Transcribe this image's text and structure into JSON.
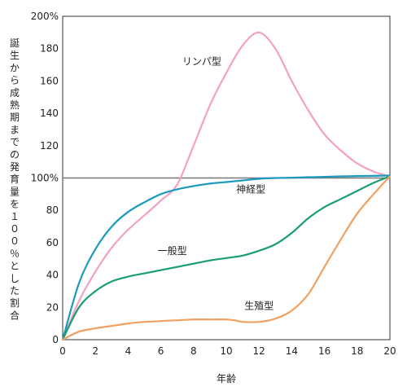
{
  "chart_data": {
    "type": "line",
    "xlabel": "年齢",
    "ylabel": "誕生から成熟期までの発育量を１００％とした割合",
    "xlim": [
      0,
      20
    ],
    "ylim": [
      0,
      200
    ],
    "x_ticks": [
      "0",
      "2",
      "4",
      "6",
      "8",
      "10",
      "12",
      "14",
      "16",
      "18",
      "20"
    ],
    "y_ticks": [
      "0",
      "20",
      "40",
      "60",
      "80",
      "100%",
      "120",
      "140",
      "160",
      "180",
      "200%"
    ],
    "reference_line": 100,
    "series": [
      {
        "name": "リンパ型",
        "color": "#f4a0c4",
        "points": [
          [
            0,
            0
          ],
          [
            1,
            24
          ],
          [
            2,
            42
          ],
          [
            3,
            57
          ],
          [
            4,
            68
          ],
          [
            5,
            77
          ],
          [
            6,
            86
          ],
          [
            7,
            96
          ],
          [
            8,
            120
          ],
          [
            9,
            145
          ],
          [
            10,
            165
          ],
          [
            11,
            182
          ],
          [
            12,
            190
          ],
          [
            13,
            180
          ],
          [
            14,
            160
          ],
          [
            15,
            142
          ],
          [
            16,
            127
          ],
          [
            17,
            117
          ],
          [
            18,
            109
          ],
          [
            19,
            104
          ],
          [
            20,
            101
          ]
        ]
      },
      {
        "name": "神経型",
        "color": "#1a9bbe",
        "points": [
          [
            0,
            0
          ],
          [
            1,
            35
          ],
          [
            2,
            56
          ],
          [
            3,
            70
          ],
          [
            4,
            79
          ],
          [
            5,
            85
          ],
          [
            6,
            90
          ],
          [
            7,
            93
          ],
          [
            8,
            95
          ],
          [
            9,
            96.5
          ],
          [
            10,
            97.5
          ],
          [
            11,
            98.5
          ],
          [
            12,
            99.5
          ],
          [
            13,
            100
          ],
          [
            14,
            100.2
          ],
          [
            15,
            100.5
          ],
          [
            16,
            100.7
          ],
          [
            17,
            101
          ],
          [
            18,
            101.2
          ],
          [
            19,
            101.3
          ],
          [
            20,
            101.5
          ]
        ]
      },
      {
        "name": "一般型",
        "color": "#1a9e6e",
        "points": [
          [
            0,
            0
          ],
          [
            1,
            20
          ],
          [
            2,
            30
          ],
          [
            3,
            36
          ],
          [
            4,
            39
          ],
          [
            5,
            41
          ],
          [
            6,
            43
          ],
          [
            7,
            45
          ],
          [
            8,
            47
          ],
          [
            9,
            49
          ],
          [
            10,
            50.5
          ],
          [
            11,
            52
          ],
          [
            12,
            55
          ],
          [
            13,
            59
          ],
          [
            14,
            66
          ],
          [
            15,
            75
          ],
          [
            16,
            82
          ],
          [
            17,
            87
          ],
          [
            18,
            92
          ],
          [
            19,
            97
          ],
          [
            20,
            101
          ]
        ]
      },
      {
        "name": "生殖型",
        "color": "#f0a060",
        "points": [
          [
            0,
            0
          ],
          [
            1,
            5
          ],
          [
            2,
            7
          ],
          [
            3,
            8.5
          ],
          [
            4,
            10
          ],
          [
            5,
            11
          ],
          [
            6,
            11.5
          ],
          [
            7,
            12
          ],
          [
            8,
            12.5
          ],
          [
            9,
            12.5
          ],
          [
            10,
            12.5
          ],
          [
            10.5,
            12
          ],
          [
            11,
            11
          ],
          [
            12,
            11
          ],
          [
            13,
            13
          ],
          [
            14,
            18
          ],
          [
            15,
            28
          ],
          [
            16,
            45
          ],
          [
            17,
            62
          ],
          [
            18,
            78
          ],
          [
            19,
            90
          ],
          [
            20,
            101
          ]
        ]
      }
    ],
    "series_labels": {
      "リンパ型": [
        8.5,
        170
      ],
      "神経型": [
        11.5,
        91
      ],
      "一般型": [
        6.7,
        53
      ],
      "生殖型": [
        12,
        19
      ]
    }
  }
}
